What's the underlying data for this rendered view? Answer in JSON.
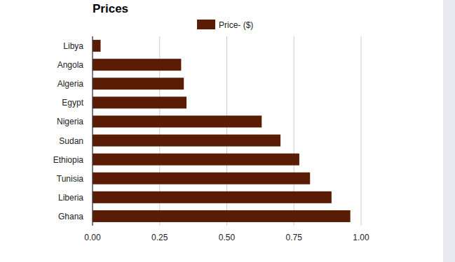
{
  "chart_data": {
    "type": "bar",
    "title": "Prices",
    "orientation": "horizontal",
    "categories": [
      "Libya",
      "Angola",
      "Algeria",
      "Egypt",
      "Nigeria",
      "Sudan",
      "Ethiopia",
      "Tunisia",
      "Liberia",
      "Ghana"
    ],
    "series": [
      {
        "name": "Price- ($)",
        "color": "#5b1c06",
        "values": [
          0.03,
          0.33,
          0.34,
          0.35,
          0.63,
          0.7,
          0.77,
          0.81,
          0.89,
          0.96
        ]
      }
    ],
    "xlim": [
      0,
      1
    ],
    "xticks": [
      {
        "value": 0,
        "label": "0.00"
      },
      0.25,
      {
        "value": 0.5,
        "label": "0.50"
      },
      0.75,
      {
        "value": 1,
        "label": "1.00"
      }
    ],
    "grid": true,
    "legend": "top"
  }
}
